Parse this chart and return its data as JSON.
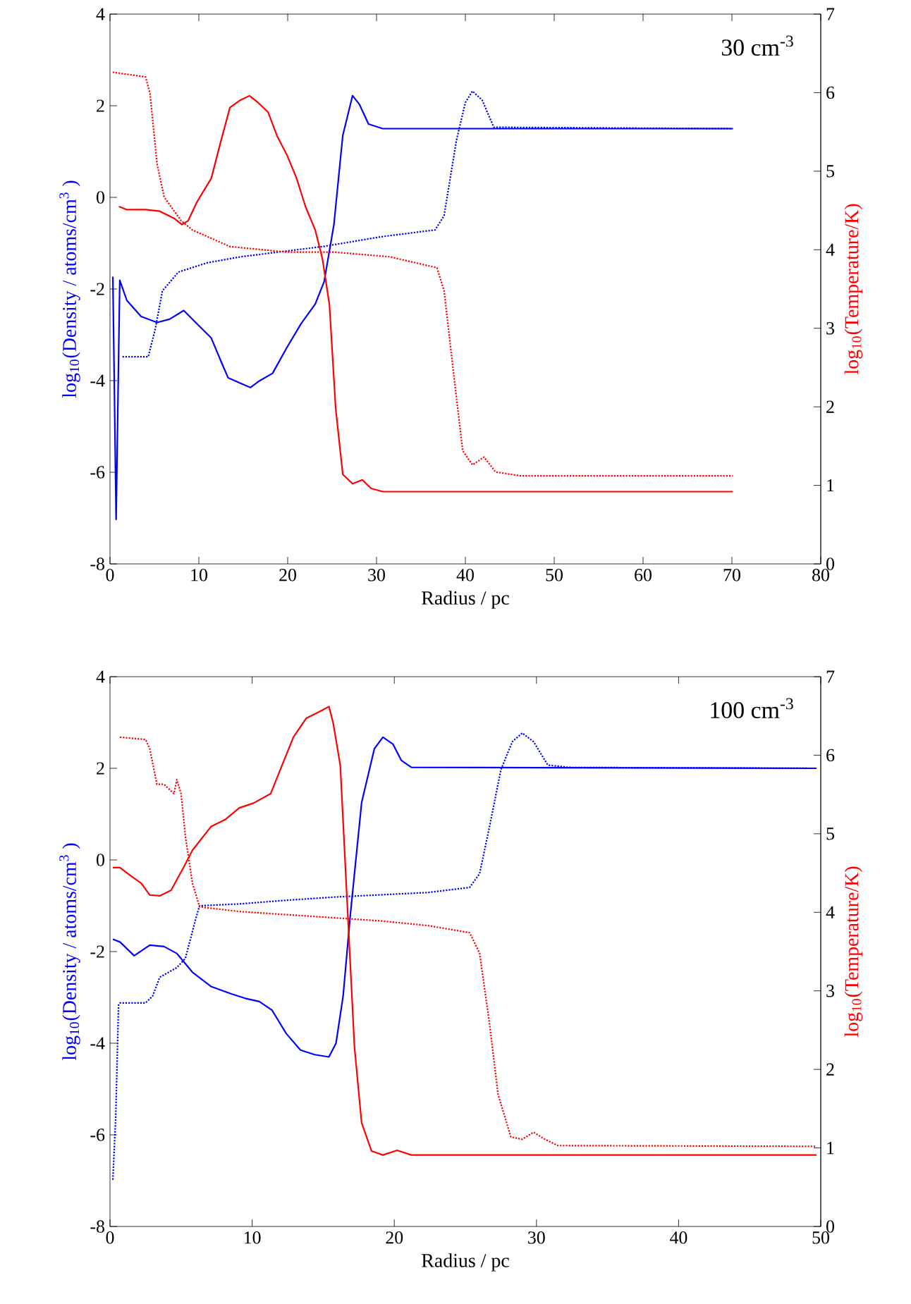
{
  "chart_data": [
    {
      "type": "line",
      "xlabel": "Radius / pc",
      "ylabel": "log$_{10}$(Density / atoms/cm$^{3}$ )",
      "y2label": "log$_{10}$(Temperature/K)",
      "annotations": [
        "30 cm$^{-3}$"
      ],
      "xlim": [
        0,
        80
      ],
      "ylim": [
        -8,
        4
      ],
      "y2lim": [
        0,
        7
      ],
      "xticks": [
        0,
        10,
        20,
        30,
        40,
        50,
        60,
        70,
        80
      ],
      "yticks": [
        -8,
        -6,
        -4,
        -2,
        0,
        2,
        4
      ],
      "y2ticks": [
        0,
        1,
        2,
        3,
        4,
        5,
        6,
        7
      ],
      "series": [
        {
          "color": "#0000ff",
          "line_style": "solid",
          "x": [
            0.32,
            0.69,
            1.1,
            1.9,
            3.5,
            5.3,
            6.7,
            8.3,
            9.8,
            11.4,
            12.5,
            13.3,
            14.6,
            15.8,
            16.7,
            18.3,
            19.9,
            21.5,
            23.1,
            24.1,
            25.2,
            26.2,
            27.3,
            28.1,
            29.1,
            30.7,
            70.1
          ],
          "values": [
            -1.73,
            -7.03,
            -1.81,
            -2.25,
            -2.6,
            -2.73,
            -2.66,
            -2.47,
            -2.76,
            -3.07,
            -3.58,
            -3.94,
            -4.05,
            -4.15,
            -4.02,
            -3.84,
            -3.28,
            -2.76,
            -2.33,
            -1.84,
            -0.6,
            1.35,
            2.22,
            2.02,
            1.6,
            1.5,
            1.5
          ]
        },
        {
          "color": "#0000ff",
          "line_style": "dotted",
          "x": [
            1.4,
            4.3,
            5.1,
            5.9,
            7.7,
            10.9,
            14.6,
            19.9,
            24.1,
            30.5,
            36.6,
            37.6,
            39.0,
            40.0,
            40.8,
            41.9,
            43.2,
            70.1
          ],
          "values": [
            -3.48,
            -3.48,
            -2.87,
            -2.04,
            -1.63,
            -1.43,
            -1.3,
            -1.17,
            -1.07,
            -0.86,
            -0.71,
            -0.4,
            1.25,
            2.07,
            2.32,
            2.12,
            1.53,
            1.5
          ]
        },
        {
          "color": "#ff0000",
          "line_style": "solid",
          "axis": "y2",
          "x": [
            1.0,
            1.9,
            4.0,
            5.6,
            7.2,
            8.1,
            8.8,
            9.8,
            11.4,
            12.5,
            13.5,
            14.6,
            15.7,
            16.7,
            17.8,
            18.8,
            19.9,
            21.0,
            22.0,
            23.1,
            23.9,
            24.7,
            25.4,
            26.2,
            27.3,
            28.4,
            29.4,
            30.7,
            70.1
          ],
          "values": [
            4.55,
            4.51,
            4.51,
            4.49,
            4.4,
            4.32,
            4.37,
            4.61,
            4.91,
            5.39,
            5.81,
            5.9,
            5.96,
            5.87,
            5.75,
            5.45,
            5.21,
            4.91,
            4.55,
            4.25,
            3.89,
            3.3,
            1.98,
            1.14,
            1.02,
            1.07,
            0.96,
            0.92,
            0.92
          ]
        },
        {
          "color": "#ff0000",
          "line_style": "dotted",
          "axis": "y2",
          "x": [
            0.3,
            4.0,
            4.5,
            5.3,
            6.1,
            8.0,
            9.3,
            13.5,
            19.9,
            25.2,
            31.5,
            36.8,
            37.6,
            38.7,
            39.7,
            40.8,
            42.1,
            43.4,
            46.3,
            70.1
          ],
          "values": [
            6.26,
            6.2,
            5.99,
            5.09,
            4.67,
            4.37,
            4.25,
            4.04,
            3.97,
            3.97,
            3.91,
            3.77,
            3.48,
            2.4,
            1.44,
            1.26,
            1.36,
            1.17,
            1.12,
            1.12
          ]
        }
      ]
    },
    {
      "type": "line",
      "xlabel": "Radius / pc",
      "ylabel": "log$_{10}$(Density / atoms/cm$^{3}$ )",
      "y2label": "log$_{10}$(Temperature/K)",
      "annotations": [
        "100 cm$^{-3}$"
      ],
      "xlim": [
        0,
        50
      ],
      "ylim": [
        -8,
        4
      ],
      "y2lim": [
        0,
        7
      ],
      "xticks": [
        0,
        10,
        20,
        30,
        40,
        50
      ],
      "yticks": [
        -8,
        -6,
        -4,
        -2,
        0,
        2,
        4
      ],
      "y2ticks": [
        0,
        1,
        2,
        3,
        4,
        5,
        6,
        7
      ],
      "series": [
        {
          "color": "#0000ff",
          "line_style": "solid",
          "x": [
            0.2,
            0.7,
            1.7,
            2.8,
            3.8,
            4.7,
            5.8,
            7.1,
            8.5,
            9.5,
            10.5,
            11.4,
            12.4,
            13.4,
            14.4,
            15.4,
            15.9,
            16.4,
            16.9,
            17.7,
            18.6,
            19.2,
            19.9,
            20.5,
            21.2,
            49.7
          ],
          "values": [
            -1.73,
            -1.79,
            -2.09,
            -1.86,
            -1.89,
            -2.04,
            -2.45,
            -2.76,
            -2.92,
            -3.02,
            -3.09,
            -3.28,
            -3.79,
            -4.15,
            -4.25,
            -4.3,
            -4.0,
            -2.97,
            -1.22,
            1.25,
            2.43,
            2.68,
            2.53,
            2.17,
            2.02,
            2.0
          ]
        },
        {
          "color": "#0000ff",
          "line_style": "dotted",
          "x": [
            0.2,
            0.4,
            0.6,
            0.7,
            2.5,
            3.0,
            3.5,
            4.7,
            5.3,
            6.0,
            6.3,
            9.1,
            12.4,
            15.8,
            22.4,
            25.3,
            26.0,
            26.7,
            27.5,
            28.3,
            29.0,
            29.8,
            30.8,
            32.3,
            49.7
          ],
          "values": [
            -6.98,
            -5.64,
            -3.17,
            -3.12,
            -3.12,
            -2.97,
            -2.56,
            -2.35,
            -2.15,
            -1.32,
            -1.0,
            -0.96,
            -0.88,
            -0.81,
            -0.71,
            -0.6,
            -0.3,
            0.73,
            1.97,
            2.58,
            2.77,
            2.58,
            2.07,
            2.02,
            2.0
          ]
        },
        {
          "color": "#ff0000",
          "line_style": "solid",
          "axis": "y2",
          "x": [
            0.2,
            0.7,
            1.5,
            2.2,
            2.8,
            3.5,
            4.3,
            5.2,
            5.8,
            7.1,
            8.1,
            9.1,
            10.1,
            11.3,
            12.1,
            12.9,
            13.8,
            14.8,
            15.4,
            15.7,
            16.2,
            16.7,
            17.2,
            17.7,
            18.4,
            19.2,
            20.2,
            21.2,
            49.7
          ],
          "values": [
            4.57,
            4.57,
            4.46,
            4.37,
            4.22,
            4.21,
            4.28,
            4.58,
            4.79,
            5.09,
            5.18,
            5.33,
            5.39,
            5.51,
            5.87,
            6.23,
            6.47,
            6.56,
            6.62,
            6.41,
            5.87,
            4.07,
            2.28,
            1.32,
            0.96,
            0.91,
            0.97,
            0.91,
            0.91
          ]
        },
        {
          "color": "#ff0000",
          "line_style": "dotted",
          "axis": "y2",
          "x": [
            0.7,
            2.5,
            2.8,
            3.3,
            3.8,
            4.5,
            4.7,
            5.0,
            5.3,
            5.8,
            6.3,
            9.1,
            14.1,
            19.1,
            22.4,
            25.3,
            26.0,
            26.7,
            27.3,
            28.2,
            29.0,
            29.8,
            30.6,
            31.5,
            49.7
          ],
          "values": [
            6.23,
            6.2,
            6.08,
            5.63,
            5.63,
            5.51,
            5.69,
            5.51,
            4.97,
            4.37,
            4.07,
            4.01,
            3.95,
            3.89,
            3.83,
            3.74,
            3.48,
            2.58,
            1.68,
            1.14,
            1.11,
            1.2,
            1.11,
            1.03,
            1.02
          ]
        }
      ]
    }
  ]
}
